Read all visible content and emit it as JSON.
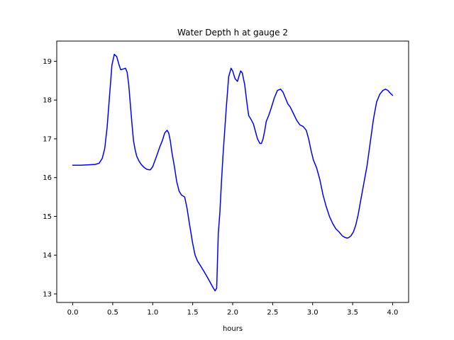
{
  "chart_data": {
    "type": "line",
    "title": "Water Depth h at gauge 2",
    "xlabel": "hours",
    "ylabel": "",
    "xlim": [
      -0.2,
      4.2
    ],
    "ylim": [
      12.78,
      19.52
    ],
    "xticks": [
      0.0,
      0.5,
      1.0,
      1.5,
      2.0,
      2.5,
      3.0,
      3.5,
      4.0
    ],
    "xtick_labels": [
      "0.0",
      "0.5",
      "1.0",
      "1.5",
      "2.0",
      "2.5",
      "3.0",
      "3.5",
      "4.0"
    ],
    "yticks": [
      13,
      14,
      15,
      16,
      17,
      18,
      19
    ],
    "ytick_labels": [
      "13",
      "14",
      "15",
      "16",
      "17",
      "18",
      "19"
    ],
    "grid": false,
    "legend": "none",
    "series": [
      {
        "color": "#0000ff",
        "x": [
          0.0,
          0.1,
          0.2,
          0.28,
          0.33,
          0.37,
          0.4,
          0.43,
          0.46,
          0.49,
          0.52,
          0.55,
          0.58,
          0.6,
          0.63,
          0.66,
          0.68,
          0.7,
          0.72,
          0.74,
          0.76,
          0.78,
          0.8,
          0.83,
          0.86,
          0.9,
          0.93,
          0.97,
          1.0,
          1.03,
          1.06,
          1.09,
          1.12,
          1.15,
          1.18,
          1.2,
          1.22,
          1.24,
          1.27,
          1.3,
          1.33,
          1.36,
          1.4,
          1.43,
          1.46,
          1.5,
          1.53,
          1.56,
          1.6,
          1.65,
          1.7,
          1.75,
          1.78,
          1.8,
          1.82,
          1.84,
          1.86,
          1.88,
          1.9,
          1.92,
          1.95,
          1.98,
          2.0,
          2.03,
          2.06,
          2.08,
          2.1,
          2.12,
          2.15,
          2.18,
          2.2,
          2.23,
          2.26,
          2.29,
          2.31,
          2.34,
          2.36,
          2.38,
          2.4,
          2.42,
          2.45,
          2.48,
          2.52,
          2.56,
          2.6,
          2.63,
          2.66,
          2.69,
          2.72,
          2.76,
          2.8,
          2.84,
          2.88,
          2.92,
          2.95,
          2.98,
          3.01,
          3.05,
          3.09,
          3.13,
          3.17,
          3.21,
          3.25,
          3.29,
          3.33,
          3.37,
          3.4,
          3.43,
          3.45,
          3.48,
          3.51,
          3.54,
          3.57,
          3.6,
          3.64,
          3.68,
          3.72,
          3.76,
          3.8,
          3.84,
          3.88,
          3.91,
          3.94,
          3.97,
          4.0
        ],
        "y": [
          16.32,
          16.32,
          16.33,
          16.34,
          16.37,
          16.5,
          16.75,
          17.3,
          18.1,
          18.9,
          19.18,
          19.12,
          18.9,
          18.78,
          18.8,
          18.82,
          18.72,
          18.4,
          17.9,
          17.4,
          16.95,
          16.72,
          16.55,
          16.42,
          16.33,
          16.25,
          16.21,
          16.2,
          16.28,
          16.45,
          16.62,
          16.8,
          16.95,
          17.15,
          17.22,
          17.15,
          16.95,
          16.65,
          16.3,
          15.9,
          15.65,
          15.55,
          15.5,
          15.2,
          14.8,
          14.3,
          14.0,
          13.85,
          13.72,
          13.55,
          13.37,
          13.18,
          13.08,
          13.15,
          14.55,
          15.1,
          15.9,
          16.6,
          17.2,
          17.8,
          18.6,
          18.82,
          18.75,
          18.55,
          18.48,
          18.62,
          18.75,
          18.7,
          18.4,
          17.9,
          17.6,
          17.5,
          17.38,
          17.15,
          17.0,
          16.88,
          16.88,
          17.0,
          17.2,
          17.45,
          17.6,
          17.78,
          18.05,
          18.25,
          18.28,
          18.2,
          18.05,
          17.9,
          17.82,
          17.65,
          17.48,
          17.36,
          17.32,
          17.22,
          17.0,
          16.7,
          16.45,
          16.25,
          15.95,
          15.55,
          15.25,
          15.0,
          14.82,
          14.68,
          14.6,
          14.5,
          14.46,
          14.44,
          14.45,
          14.5,
          14.6,
          14.78,
          15.05,
          15.4,
          15.85,
          16.3,
          16.9,
          17.5,
          17.95,
          18.15,
          18.25,
          18.28,
          18.25,
          18.18,
          18.12
        ]
      }
    ]
  }
}
